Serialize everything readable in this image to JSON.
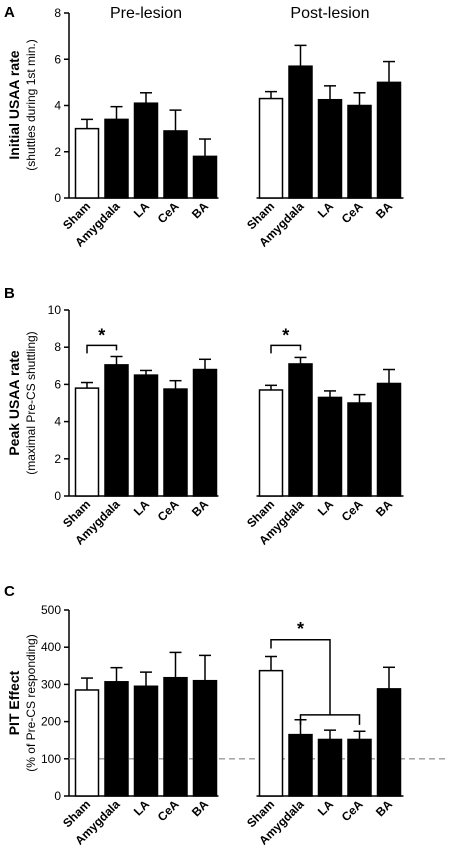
{
  "chart_data": [
    {
      "type": "bar",
      "panel": "A",
      "ylabel": "Initial USAA rate",
      "ylabel_sub": "(shuttles during 1st min.)",
      "ylim": [
        0,
        8
      ],
      "yticks": [
        0,
        2,
        4,
        6,
        8
      ],
      "groups": [
        {
          "title": "Pre-lesion",
          "categories": [
            "Sham",
            "Amygdala",
            "LA",
            "CeA",
            "BA"
          ],
          "values": [
            3.0,
            3.4,
            4.1,
            2.9,
            1.8
          ],
          "errors": [
            0.4,
            0.55,
            0.45,
            0.9,
            0.75
          ],
          "fills": [
            "#ffffff",
            "#000000",
            "#000000",
            "#000000",
            "#000000"
          ]
        },
        {
          "title": "Post-lesion",
          "categories": [
            "Sham",
            "Amygdala",
            "LA",
            "CeA",
            "BA"
          ],
          "values": [
            4.3,
            5.7,
            4.25,
            4.0,
            5.0
          ],
          "errors": [
            0.3,
            0.9,
            0.6,
            0.55,
            0.9
          ],
          "fills": [
            "#ffffff",
            "#000000",
            "#000000",
            "#000000",
            "#000000"
          ]
        }
      ],
      "annotations": []
    },
    {
      "type": "bar",
      "panel": "B",
      "ylabel": "Peak USAA rate",
      "ylabel_sub": "(maximal Pre-CS shuttling)",
      "ylim": [
        0,
        10
      ],
      "yticks": [
        0,
        2,
        4,
        6,
        8,
        10
      ],
      "groups": [
        {
          "title": "",
          "categories": [
            "Sham",
            "Amygdala",
            "LA",
            "CeA",
            "BA"
          ],
          "values": [
            5.8,
            7.05,
            6.5,
            5.75,
            6.8
          ],
          "errors": [
            0.3,
            0.45,
            0.25,
            0.45,
            0.55
          ],
          "fills": [
            "#ffffff",
            "#000000",
            "#000000",
            "#000000",
            "#000000"
          ]
        },
        {
          "title": "",
          "categories": [
            "Sham",
            "Amygdala",
            "LA",
            "CeA",
            "BA"
          ],
          "values": [
            5.7,
            7.1,
            5.3,
            5.0,
            6.05
          ],
          "errors": [
            0.25,
            0.35,
            0.35,
            0.45,
            0.75
          ],
          "fills": [
            "#ffffff",
            "#000000",
            "#000000",
            "#000000",
            "#000000"
          ]
        }
      ],
      "annotations": [
        {
          "group": 0,
          "from": 0,
          "to": 1,
          "y": 8.1,
          "label": "*"
        },
        {
          "group": 1,
          "from": 0,
          "to": 1,
          "y": 8.1,
          "label": "*"
        }
      ]
    },
    {
      "type": "bar",
      "panel": "C",
      "ylabel": "PIT Effect",
      "ylabel_sub": "(% of Pre-CS responding)",
      "ylim": [
        0,
        500
      ],
      "yticks": [
        0,
        100,
        200,
        300,
        400,
        500
      ],
      "reference_line": 100,
      "groups": [
        {
          "title": "",
          "categories": [
            "Sham",
            "Amygdala",
            "LA",
            "CeA",
            "BA"
          ],
          "values": [
            285,
            307,
            295,
            318,
            310
          ],
          "errors": [
            32,
            38,
            38,
            68,
            68
          ],
          "fills": [
            "#ffffff",
            "#000000",
            "#000000",
            "#000000",
            "#000000"
          ]
        },
        {
          "title": "",
          "categories": [
            "Sham",
            "Amygdala",
            "LA",
            "CeA",
            "BA"
          ],
          "values": [
            337,
            165,
            152,
            152,
            288
          ],
          "errors": [
            38,
            40,
            25,
            22,
            58
          ],
          "fills": [
            "#ffffff",
            "#000000",
            "#000000",
            "#000000",
            "#000000"
          ]
        }
      ],
      "annotations": [
        {
          "group": 1,
          "type": "bracket-multi",
          "from": 0,
          "to_range": [
            1,
            3
          ],
          "y_top": 420,
          "y_low": 218,
          "label": "*"
        }
      ]
    }
  ]
}
